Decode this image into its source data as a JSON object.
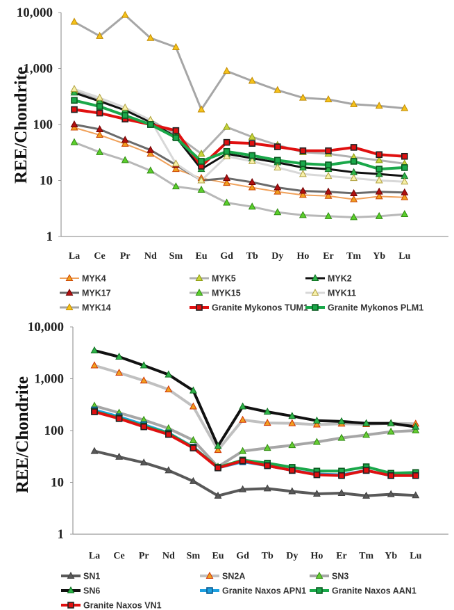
{
  "chart_data": [
    {
      "type": "line",
      "ylabel": "REE/Chondrite",
      "yscale": "log",
      "ylim": [
        1,
        10000
      ],
      "yticks": [
        "1",
        "10",
        "100",
        "1,000",
        "10,000"
      ],
      "categories": [
        "La",
        "Ce",
        "Pr",
        "Nd",
        "Sm",
        "Eu",
        "Gd",
        "Tb",
        "Dy",
        "Ho",
        "Er",
        "Tm",
        "Yb",
        "Lu"
      ],
      "series": [
        {
          "name": "MYK4",
          "line": "#f0a15a",
          "width": 2,
          "marker": "triangle",
          "mfill": "#f0a020",
          "mstroke": "#cc4400",
          "values": [
            88,
            65,
            45,
            30,
            16,
            11,
            9,
            7.5,
            6.3,
            5.5,
            5.3,
            4.6,
            5.2,
            5
          ]
        },
        {
          "name": "MYK5",
          "line": "#b0b0b0",
          "width": 3,
          "marker": "triangle",
          "mfill": "#c8d43c",
          "mstroke": "#8a9a10",
          "values": [
            400,
            270,
            180,
            120,
            65,
            30,
            90,
            60,
            43,
            32,
            30,
            26,
            23,
            20
          ]
        },
        {
          "name": "MYK2",
          "line": "#111111",
          "width": 3,
          "marker": "triangle",
          "mfill": "#2fb34a",
          "mstroke": "#0c6d1f",
          "values": [
            370,
            260,
            180,
            110,
            60,
            16,
            30,
            25,
            21,
            17,
            16,
            14,
            13,
            12
          ]
        },
        {
          "name": "MYK17",
          "line": "#6a6a6a",
          "width": 3,
          "marker": "triangle",
          "mfill": "#b01010",
          "mstroke": "#700000",
          "values": [
            100,
            82,
            53,
            35,
            19,
            10,
            11,
            9.3,
            7.5,
            6.5,
            6.3,
            5.9,
            6.3,
            6.1
          ]
        },
        {
          "name": "MYK15",
          "line": "#b8b8b8",
          "width": 3,
          "marker": "triangle",
          "mfill": "#5bcf2b",
          "mstroke": "#2e8a10",
          "values": [
            48,
            32,
            23,
            15,
            7.8,
            6.8,
            4,
            3.4,
            2.7,
            2.4,
            2.3,
            2.2,
            2.3,
            2.5
          ]
        },
        {
          "name": "MYK11",
          "line": "#d8d8d8",
          "width": 3,
          "marker": "triangle",
          "mfill": "#f7f0a8",
          "mstroke": "#b0a040",
          "values": [
            430,
            300,
            200,
            120,
            20,
            10,
            27,
            22,
            17,
            13,
            12,
            11,
            10,
            9.5
          ]
        },
        {
          "name": "MYK14",
          "line": "#a6a6a6",
          "width": 3,
          "marker": "triangle",
          "mfill": "#f5c21a",
          "mstroke": "#c08a00",
          "values": [
            6800,
            3800,
            9000,
            3500,
            2400,
            185,
            900,
            600,
            410,
            300,
            280,
            230,
            215,
            195
          ]
        },
        {
          "name": "Granite Mykonos TUM1",
          "line": "#e01010",
          "width": 4,
          "marker": "square",
          "mfill": "#e01010",
          "mstroke": "#222222",
          "values": [
            185,
            160,
            125,
            100,
            78,
            18,
            48,
            46,
            40,
            34,
            34,
            39,
            29,
            27
          ]
        },
        {
          "name": "Granite Mykonos PLM1",
          "line": "#1aa84a",
          "width": 4,
          "marker": "square",
          "mfill": "#1aa84a",
          "mstroke": "#0a5a20",
          "values": [
            270,
            210,
            145,
            100,
            58,
            22,
            33,
            28,
            23,
            20,
            19,
            22,
            16,
            17
          ]
        }
      ]
    },
    {
      "type": "line",
      "ylabel": "REE/Chondrite",
      "yscale": "log",
      "ylim": [
        1,
        10000
      ],
      "yticks": [
        "1",
        "10",
        "100",
        "1,000",
        "10,000"
      ],
      "categories": [
        "La",
        "Ce",
        "Pr",
        "Nd",
        "Sm",
        "Eu",
        "Gd",
        "Tb",
        "Dy",
        "Ho",
        "Er",
        "Tm",
        "Yb",
        "Lu"
      ],
      "series": [
        {
          "name": "SN1",
          "line": "#595959",
          "width": 4,
          "marker": "triangle",
          "mfill": "#595959",
          "mstroke": "#404040",
          "values": [
            40,
            31,
            24,
            17,
            10.5,
            5.5,
            7.3,
            7.6,
            6.7,
            6,
            6.2,
            5.5,
            5.9,
            5.6
          ]
        },
        {
          "name": "SN2A",
          "line": "#c0c0c0",
          "width": 4,
          "marker": "triangle",
          "mfill": "#f0a020",
          "mstroke": "#d03000",
          "values": [
            1800,
            1300,
            920,
            620,
            290,
            42,
            160,
            140,
            138,
            130,
            135,
            132,
            138,
            135
          ]
        },
        {
          "name": "SN3",
          "line": "#a6a6a6",
          "width": 4,
          "marker": "triangle",
          "mfill": "#66cc33",
          "mstroke": "#2e8a10",
          "values": [
            300,
            220,
            160,
            110,
            65,
            20,
            40,
            46,
            52,
            60,
            72,
            82,
            95,
            100
          ]
        },
        {
          "name": "SN6",
          "line": "#111111",
          "width": 4,
          "marker": "triangle",
          "mfill": "#2fb34a",
          "mstroke": "#0c6d1f",
          "values": [
            3500,
            2650,
            1800,
            1200,
            590,
            50,
            290,
            230,
            190,
            155,
            150,
            138,
            138,
            118
          ]
        },
        {
          "name": "Granite Naxos APN1",
          "line": "#1ea0e0",
          "width": 4,
          "marker": "square",
          "mfill": "#1ea0e0",
          "mstroke": "#0a5a90",
          "values": [
            250,
            185,
            130,
            90,
            48,
            19,
            25,
            21,
            17,
            14.5,
            14,
            17,
            13.5,
            14
          ]
        },
        {
          "name": "Granite Naxos AAN1",
          "line": "#1aa84a",
          "width": 4,
          "marker": "square",
          "mfill": "#1aa84a",
          "mstroke": "#0a5a20",
          "values": [
            235,
            175,
            122,
            88,
            47,
            19.5,
            27,
            23.5,
            19.5,
            16.5,
            16.5,
            20,
            15,
            15.5
          ]
        },
        {
          "name": "Granite Naxos VN1",
          "line": "#e01010",
          "width": 4,
          "marker": "square",
          "mfill": "#e01010",
          "mstroke": "#222222",
          "values": [
            230,
            170,
            118,
            84,
            46,
            19,
            26,
            21,
            17,
            14,
            13.5,
            17,
            13.5,
            13.5
          ]
        }
      ]
    }
  ]
}
